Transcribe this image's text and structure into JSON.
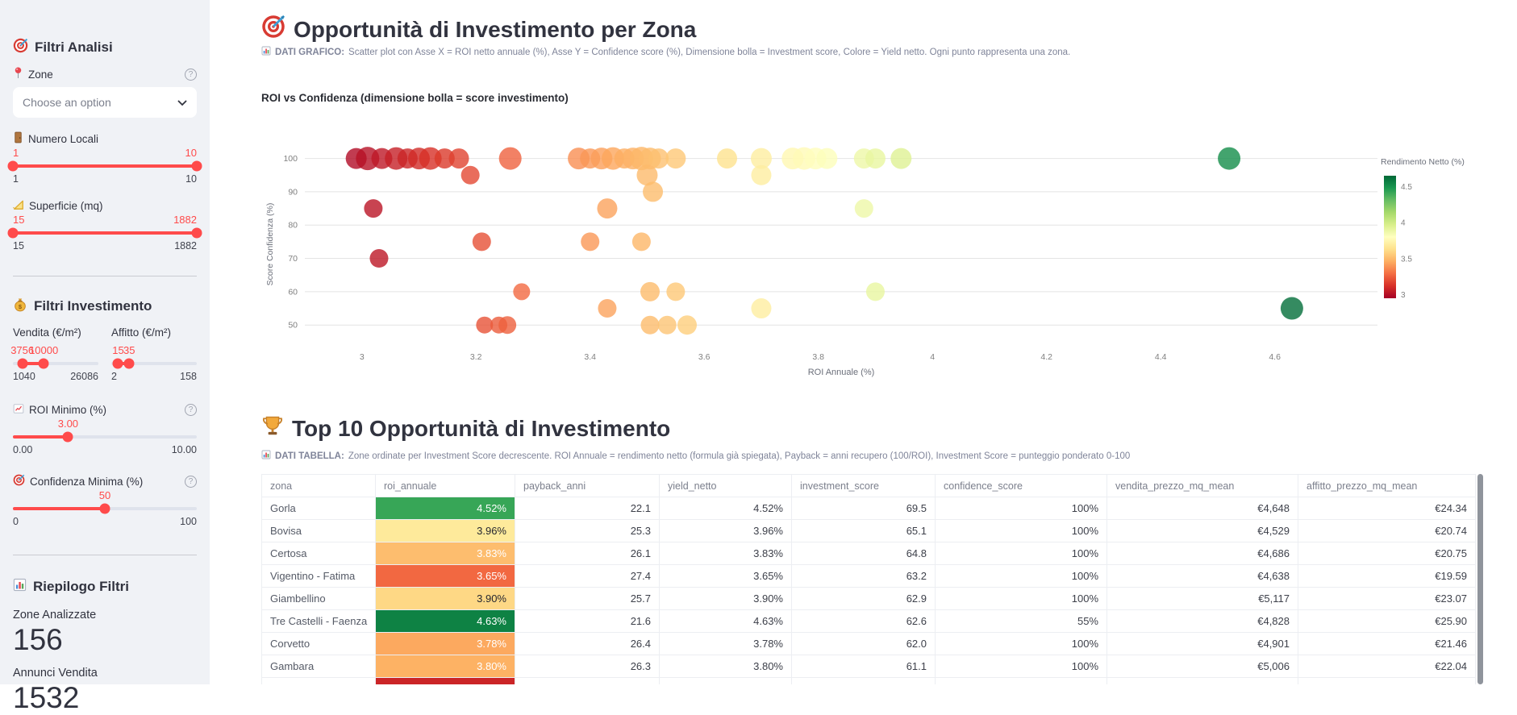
{
  "colors": {
    "accent": "#ff4b4b",
    "sidebar_bg": "#f0f2f6"
  },
  "sidebar": {
    "filtri_analisi_title": "Filtri Analisi",
    "zone": {
      "label": "Zone",
      "placeholder": "Choose an option",
      "help": "?"
    },
    "numero_locali": {
      "label": "Numero Locali",
      "min": "1",
      "max": "10",
      "thumbs": [
        {
          "text": "1",
          "pct": 0
        },
        {
          "text": "10",
          "pct": 100
        }
      ],
      "fill": [
        0,
        100
      ]
    },
    "superficie": {
      "label": "Superficie (mq)",
      "min": "15",
      "max": "1882",
      "thumbs": [
        {
          "text": "15",
          "pct": 0
        },
        {
          "text": "1882",
          "pct": 100
        }
      ],
      "fill": [
        0,
        100
      ]
    },
    "filtri_investimento_title": "Filtri Investimento",
    "vendita": {
      "label": "Vendita (€/m²)",
      "min": "1040",
      "max": "26086",
      "thumbs": [
        {
          "text": "3756",
          "pct": 11
        },
        {
          "text": "10000",
          "pct": 36
        }
      ],
      "fill": [
        11,
        36
      ]
    },
    "affitto": {
      "label": "Affitto (€/m²)",
      "min": "2",
      "max": "158",
      "thumbs": [
        {
          "text": "15",
          "pct": 8
        },
        {
          "text": "35",
          "pct": 21
        }
      ],
      "fill": [
        8,
        21
      ]
    },
    "roi_minimo": {
      "label": "ROI Minimo (%)",
      "min": "0.00",
      "max": "10.00",
      "help": "?",
      "thumbs": [
        {
          "text": "3.00",
          "pct": 30
        }
      ],
      "fill": [
        0,
        30
      ]
    },
    "confidenza": {
      "label": "Confidenza Minima (%)",
      "min": "0",
      "max": "100",
      "help": "?",
      "thumbs": [
        {
          "text": "50",
          "pct": 50
        }
      ],
      "fill": [
        0,
        50
      ]
    },
    "riepilogo_title": "Riepilogo Filtri",
    "metrics": [
      {
        "label": "Zone Analizzate",
        "value": "156"
      },
      {
        "label": "Annunci Vendita",
        "value": "1532"
      }
    ]
  },
  "main": {
    "title": "Opportunità di Investimento per Zona",
    "chart_caption_bold": "DATI GRAFICO:",
    "chart_caption_rest": "Scatter plot con Asse X = ROI netto annuale (%), Asse Y = Confidence score (%), Dimensione bolla = Investment score, Colore = Yield netto. Ogni punto rappresenta una zona.",
    "table_title": "Top 10 Opportunità di Investimento",
    "table_caption_bold": "DATI TABELLA:",
    "table_caption_rest": "Zone ordinate per Investment Score decrescente. ROI Annuale = rendimento netto (formula già spiegata), Payback = anni recupero (100/ROI), Investment Score = punteggio ponderato 0-100"
  },
  "chart_data": {
    "type": "scatter",
    "title": "ROI vs Confidenza (dimensione bolla = score investimento)",
    "xlabel": "ROI Annuale (%)",
    "ylabel": "Score Confidenza (%)",
    "xlim": [
      2.9,
      4.78
    ],
    "ylim": [
      44,
      104.5
    ],
    "xticks": [
      3,
      3.2,
      3.4,
      3.6,
      3.8,
      4,
      4.2,
      4.4,
      4.6
    ],
    "yticks": [
      50,
      60,
      70,
      80,
      90,
      100
    ],
    "grid": "horizontal",
    "colorbar": {
      "title": "Rendimento Netto (%)",
      "ticks": [
        4.5,
        4,
        3.5,
        3
      ],
      "domain": [
        2.95,
        4.65
      ],
      "colormap": "RdYlGn"
    },
    "point_fields": [
      "roi_annuale_pct",
      "score_confidenza_pct",
      "bubble_radius_px"
    ],
    "points": [
      [
        2.99,
        100,
        13
      ],
      [
        3.01,
        100,
        14.5
      ],
      [
        3.035,
        100,
        13
      ],
      [
        3.06,
        100,
        14
      ],
      [
        3.08,
        100,
        12.5
      ],
      [
        3.1,
        100,
        13.5
      ],
      [
        3.12,
        100,
        14
      ],
      [
        3.145,
        100,
        12.5
      ],
      [
        3.17,
        100,
        12.5
      ],
      [
        3.02,
        85,
        11.5
      ],
      [
        3.03,
        70,
        11.5
      ],
      [
        3.19,
        95,
        11.5
      ],
      [
        3.21,
        75,
        11.5
      ],
      [
        3.215,
        50,
        10.5
      ],
      [
        3.24,
        50,
        10.5
      ],
      [
        3.255,
        50,
        11
      ],
      [
        3.28,
        60,
        10.5
      ],
      [
        3.26,
        100,
        14
      ],
      [
        3.38,
        100,
        13.5
      ],
      [
        3.4,
        100,
        12.5
      ],
      [
        3.42,
        100,
        13.5
      ],
      [
        3.44,
        100,
        14
      ],
      [
        3.46,
        100,
        12.5
      ],
      [
        3.475,
        100,
        13.5
      ],
      [
        3.49,
        100,
        14.5
      ],
      [
        3.505,
        100,
        13.5
      ],
      [
        3.52,
        100,
        12.5
      ],
      [
        3.55,
        100,
        12.5
      ],
      [
        3.5,
        95,
        13
      ],
      [
        3.51,
        90,
        12.5
      ],
      [
        3.43,
        85,
        12.5
      ],
      [
        3.4,
        75,
        11.5
      ],
      [
        3.49,
        75,
        11.5
      ],
      [
        3.43,
        55,
        11.5
      ],
      [
        3.505,
        60,
        12
      ],
      [
        3.55,
        60,
        11.5
      ],
      [
        3.505,
        50,
        11.5
      ],
      [
        3.535,
        50,
        11.5
      ],
      [
        3.57,
        50,
        12
      ],
      [
        3.64,
        100,
        12.5
      ],
      [
        3.7,
        100,
        13
      ],
      [
        3.7,
        95,
        12.5
      ],
      [
        3.7,
        55,
        12.5
      ],
      [
        3.755,
        100,
        13.5
      ],
      [
        3.775,
        100,
        14
      ],
      [
        3.795,
        100,
        13.5
      ],
      [
        3.815,
        100,
        13
      ],
      [
        3.88,
        100,
        12.5
      ],
      [
        3.9,
        100,
        12.5
      ],
      [
        3.945,
        100,
        13
      ],
      [
        3.88,
        85,
        11.5
      ],
      [
        3.9,
        60,
        11.5
      ],
      [
        4.52,
        100,
        14
      ],
      [
        4.63,
        55,
        14
      ]
    ]
  },
  "table": {
    "columns": [
      "zona",
      "roi_annuale",
      "payback_anni",
      "yield_netto",
      "investment_score",
      "confidence_score",
      "vendita_prezzo_mq_mean",
      "affitto_prezzo_mq_mean"
    ],
    "color_domain": [
      3.4,
      4.7
    ],
    "rows": [
      {
        "zona": "Gorla",
        "roi": "4.52%",
        "roi_val": 4.52,
        "payback": "22.1",
        "yield": "4.52%",
        "inv": "69.5",
        "conf": "100%",
        "vendita": "€4,648",
        "affitto": "€24.34"
      },
      {
        "zona": "Bovisa",
        "roi": "3.96%",
        "roi_val": 3.96,
        "payback": "25.3",
        "yield": "3.96%",
        "inv": "65.1",
        "conf": "100%",
        "vendita": "€4,529",
        "affitto": "€20.74"
      },
      {
        "zona": "Certosa",
        "roi": "3.83%",
        "roi_val": 3.83,
        "payback": "26.1",
        "yield": "3.83%",
        "inv": "64.8",
        "conf": "100%",
        "vendita": "€4,686",
        "affitto": "€20.75"
      },
      {
        "zona": "Vigentino - Fatima",
        "roi": "3.65%",
        "roi_val": 3.65,
        "payback": "27.4",
        "yield": "3.65%",
        "inv": "63.2",
        "conf": "100%",
        "vendita": "€4,638",
        "affitto": "€19.59"
      },
      {
        "zona": "Giambellino",
        "roi": "3.90%",
        "roi_val": 3.9,
        "payback": "25.7",
        "yield": "3.90%",
        "inv": "62.9",
        "conf": "100%",
        "vendita": "€5,117",
        "affitto": "€23.07"
      },
      {
        "zona": "Tre Castelli - Faenza",
        "roi": "4.63%",
        "roi_val": 4.63,
        "payback": "21.6",
        "yield": "4.63%",
        "inv": "62.6",
        "conf": "55%",
        "vendita": "€4,828",
        "affitto": "€25.90"
      },
      {
        "zona": "Corvetto",
        "roi": "3.78%",
        "roi_val": 3.78,
        "payback": "26.4",
        "yield": "3.78%",
        "inv": "62.0",
        "conf": "100%",
        "vendita": "€4,901",
        "affitto": "€21.46"
      },
      {
        "zona": "Gambara",
        "roi": "3.80%",
        "roi_val": 3.8,
        "payback": "26.3",
        "yield": "3.80%",
        "inv": "61.1",
        "conf": "100%",
        "vendita": "€5,006",
        "affitto": "€22.04"
      }
    ],
    "partial_row_roi_val": 3.5
  }
}
